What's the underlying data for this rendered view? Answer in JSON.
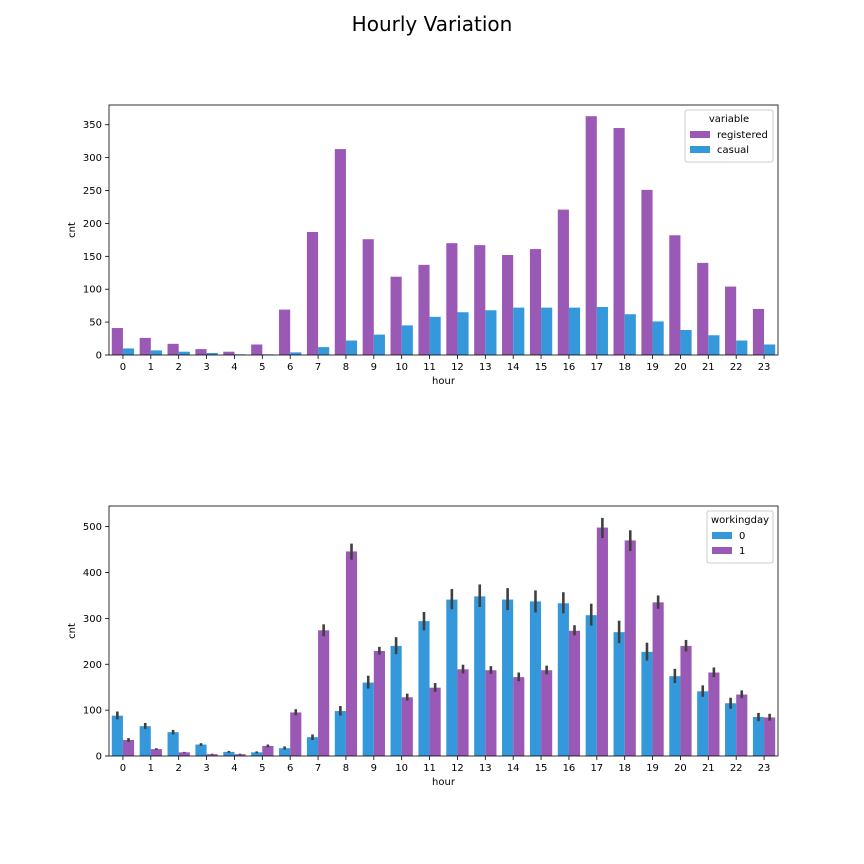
{
  "title": "Hourly Variation",
  "chart_data": [
    {
      "type": "bar",
      "xlabel": "hour",
      "ylabel": "cnt",
      "categories": [
        "0",
        "1",
        "2",
        "3",
        "4",
        "5",
        "6",
        "7",
        "8",
        "9",
        "10",
        "11",
        "12",
        "13",
        "14",
        "15",
        "16",
        "17",
        "18",
        "19",
        "20",
        "21",
        "22",
        "23"
      ],
      "ylim": [
        0,
        380
      ],
      "yticks": [
        0,
        50,
        100,
        150,
        200,
        250,
        300,
        350
      ],
      "grid": false,
      "legend": {
        "title": "variable",
        "placement": "top-right"
      },
      "series": [
        {
          "name": "registered",
          "color": "#9b59b6",
          "values": [
            41,
            26,
            17,
            9,
            5,
            16,
            69,
            187,
            313,
            176,
            119,
            137,
            170,
            167,
            152,
            161,
            221,
            363,
            345,
            251,
            182,
            140,
            104,
            70
          ]
        },
        {
          "name": "casual",
          "color": "#3498db",
          "values": [
            10,
            7,
            5,
            3,
            1,
            1,
            4,
            12,
            22,
            31,
            45,
            58,
            65,
            68,
            72,
            72,
            72,
            73,
            62,
            51,
            38,
            30,
            22,
            16
          ]
        }
      ]
    },
    {
      "type": "bar",
      "xlabel": "hour",
      "ylabel": "cnt",
      "categories": [
        "0",
        "1",
        "2",
        "3",
        "4",
        "5",
        "6",
        "7",
        "8",
        "9",
        "10",
        "11",
        "12",
        "13",
        "14",
        "15",
        "16",
        "17",
        "18",
        "19",
        "20",
        "21",
        "22",
        "23"
      ],
      "ylim": [
        0,
        545
      ],
      "yticks": [
        0,
        100,
        200,
        300,
        400,
        500
      ],
      "grid": false,
      "legend": {
        "title": "workingday",
        "placement": "top-right"
      },
      "series": [
        {
          "name": "0",
          "color": "#3498db",
          "values": [
            88,
            65,
            52,
            25,
            9,
            8,
            17,
            41,
            98,
            160,
            240,
            294,
            341,
            348,
            341,
            337,
            333,
            307,
            270,
            227,
            174,
            141,
            115,
            85
          ],
          "err_low": [
            80,
            59,
            47,
            22,
            7,
            6,
            14,
            35,
            88,
            147,
            222,
            274,
            320,
            325,
            318,
            313,
            311,
            284,
            246,
            208,
            159,
            129,
            103,
            76
          ],
          "err_high": [
            97,
            72,
            57,
            28,
            11,
            10,
            21,
            47,
            109,
            175,
            259,
            314,
            364,
            374,
            366,
            361,
            357,
            332,
            295,
            247,
            190,
            154,
            127,
            94
          ]
        },
        {
          "name": "1",
          "color": "#9b59b6",
          "values": [
            35,
            15,
            8,
            4,
            4,
            22,
            95,
            274,
            446,
            229,
            128,
            149,
            189,
            187,
            172,
            187,
            273,
            498,
            470,
            335,
            240,
            182,
            134,
            84
          ],
          "err_low": [
            31,
            13,
            7,
            3,
            3,
            19,
            89,
            261,
            428,
            221,
            121,
            140,
            180,
            179,
            163,
            178,
            263,
            475,
            447,
            321,
            228,
            172,
            126,
            77
          ],
          "err_high": [
            39,
            17,
            9,
            5,
            5,
            25,
            102,
            287,
            463,
            238,
            136,
            159,
            199,
            196,
            182,
            197,
            285,
            519,
            492,
            350,
            253,
            193,
            143,
            92
          ]
        }
      ]
    }
  ]
}
